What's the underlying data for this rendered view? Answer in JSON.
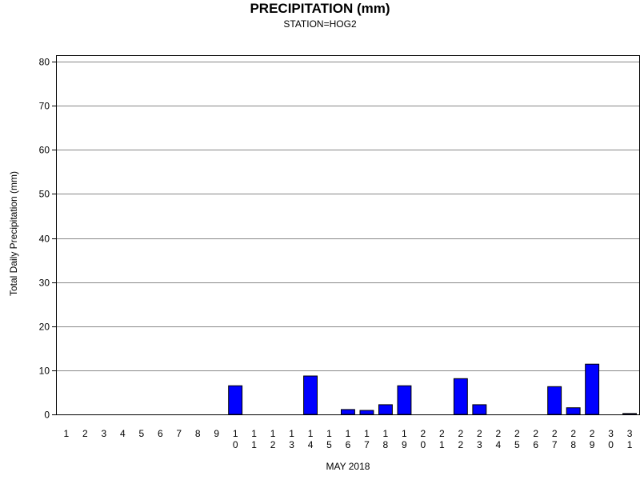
{
  "chart_data": {
    "type": "bar",
    "title": "PRECIPITATION (mm)",
    "subtitle": "STATION=HOG2",
    "xlabel": "MAY 2018",
    "ylabel": "Total Daily Precipitation (mm)",
    "ylim": [
      0,
      80
    ],
    "yticks": [
      "0",
      "10",
      "20",
      "30",
      "40",
      "50",
      "60",
      "70",
      "80"
    ],
    "grid": true,
    "categories": [
      "1",
      "2",
      "3",
      "4",
      "5",
      "6",
      "7",
      "8",
      "9",
      "10",
      "11",
      "12",
      "13",
      "14",
      "15",
      "16",
      "17",
      "18",
      "19",
      "20",
      "21",
      "22",
      "23",
      "24",
      "25",
      "26",
      "27",
      "28",
      "29",
      "30",
      "31"
    ],
    "values": [
      0,
      0,
      0,
      0,
      0,
      0,
      0,
      0,
      0,
      6.5,
      0,
      0,
      0,
      8.7,
      0,
      1.1,
      0.9,
      2.2,
      6.5,
      0,
      0,
      8.1,
      2.2,
      0,
      0,
      0,
      6.3,
      1.5,
      11.4,
      0,
      0.2
    ],
    "bar_color": "#0000ff"
  }
}
